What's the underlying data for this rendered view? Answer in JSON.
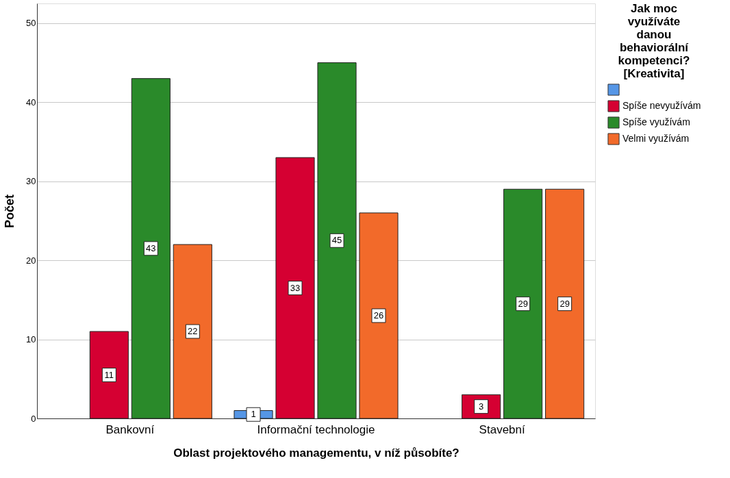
{
  "chart_data": {
    "type": "bar",
    "xlabel": "Oblast projektového managementu, v níž působíte?",
    "ylabel": "Počet",
    "legend_title": "Jak moc využíváte danou behaviorální kompetenci? [Kreativita]",
    "categories": [
      "Bankovní",
      "Informační technologie",
      "Stavební"
    ],
    "series": [
      {
        "color": "#5596e6",
        "values": [
          null,
          1,
          null
        ]
      },
      {
        "name": "Spíše nevyužívám",
        "color": "#d50032",
        "values": [
          11,
          33,
          3
        ]
      },
      {
        "name": "Spíše využívám",
        "color": "#2a8a2a",
        "values": [
          43,
          45,
          29
        ]
      },
      {
        "name": "Velmi využívám",
        "color": "#f26a2a",
        "values": [
          22,
          26,
          29
        ]
      }
    ],
    "ylim": [
      0,
      52.5
    ],
    "yticks": [
      0,
      10,
      20,
      30,
      40,
      50
    ],
    "grid": "y",
    "legend": "right",
    "data_labels": true
  }
}
